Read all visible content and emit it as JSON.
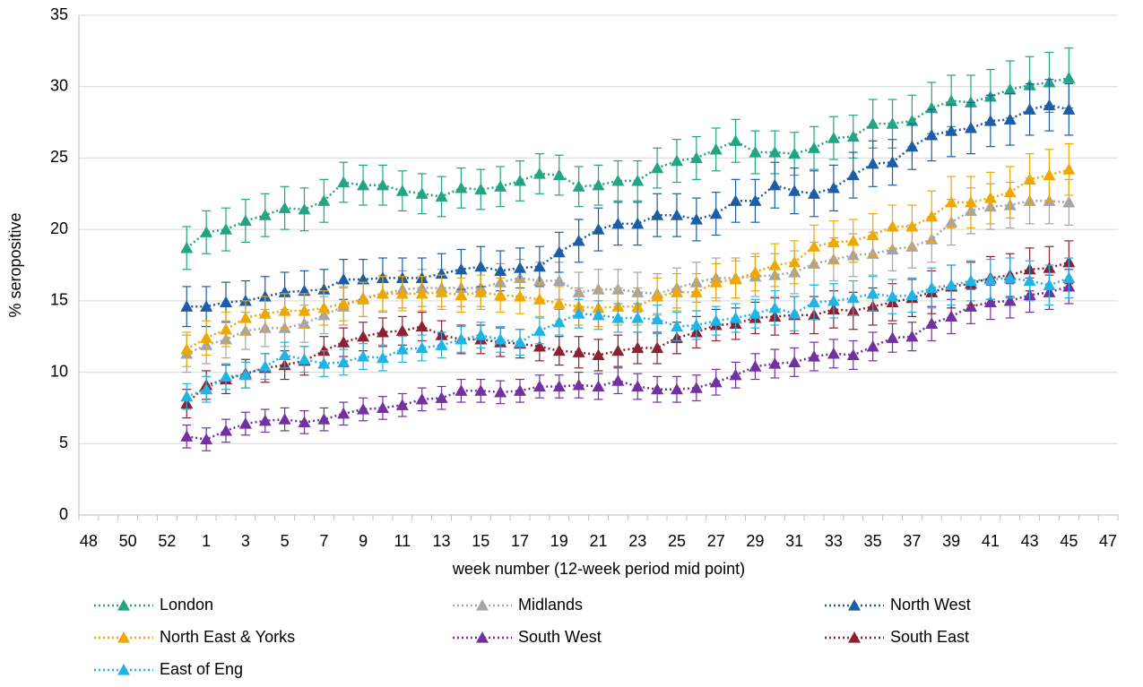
{
  "chart_data": {
    "type": "line",
    "x_label": "week number (12-week period mid point)",
    "y_label": "% seropositive",
    "categories": [
      48,
      null,
      50,
      null,
      52,
      null,
      1,
      null,
      3,
      null,
      5,
      null,
      7,
      null,
      9,
      null,
      11,
      null,
      13,
      null,
      15,
      null,
      17,
      null,
      19,
      null,
      21,
      null,
      23,
      null,
      25,
      null,
      27,
      null,
      29,
      null,
      31,
      null,
      33,
      null,
      35,
      null,
      37,
      null,
      39,
      null,
      41,
      null,
      43,
      null,
      45,
      null,
      47
    ],
    "ylim": [
      0,
      35
    ],
    "yticks": [
      0,
      5,
      10,
      15,
      20,
      25,
      30,
      35
    ],
    "grid": true,
    "legend": "bottom",
    "series": [
      {
        "name": "London",
        "color": "#21a583",
        "values": [
          null,
          null,
          null,
          null,
          null,
          18.7,
          19.8,
          20.0,
          20.6,
          21.0,
          21.5,
          21.4,
          22.0,
          23.3,
          23.1,
          23.1,
          22.7,
          22.5,
          22.3,
          22.9,
          22.8,
          23.0,
          23.4,
          23.9,
          23.8,
          23.0,
          23.1,
          23.4,
          23.4,
          24.3,
          24.8,
          25.0,
          25.6,
          26.2,
          25.4,
          25.4,
          25.3,
          25.7,
          26.4,
          26.5,
          27.4,
          27.4,
          27.6,
          28.5,
          29.0,
          28.9,
          29.3,
          29.8,
          30.1,
          30.3,
          30.6,
          null,
          null
        ],
        "errors": [
          null,
          null,
          null,
          null,
          null,
          1.5,
          1.5,
          1.5,
          1.5,
          1.5,
          1.5,
          1.5,
          1.5,
          1.4,
          1.4,
          1.4,
          1.4,
          1.4,
          1.4,
          1.4,
          1.4,
          1.4,
          1.4,
          1.4,
          1.4,
          1.4,
          1.4,
          1.4,
          1.4,
          1.4,
          1.5,
          1.5,
          1.5,
          1.5,
          1.5,
          1.5,
          1.5,
          1.5,
          1.5,
          1.5,
          1.7,
          1.7,
          1.8,
          1.8,
          1.8,
          1.9,
          1.9,
          2.0,
          2.0,
          2.1,
          2.1,
          null,
          null
        ]
      },
      {
        "name": "Midlands",
        "color": "#a5a5a5",
        "values": [
          null,
          null,
          null,
          null,
          null,
          11.3,
          11.9,
          12.3,
          12.9,
          13.1,
          13.1,
          13.4,
          14.0,
          14.6,
          15.2,
          15.5,
          15.8,
          15.9,
          15.9,
          15.9,
          15.9,
          16.3,
          16.6,
          16.4,
          16.4,
          15.6,
          15.8,
          15.8,
          15.6,
          15.5,
          15.9,
          16.3,
          16.6,
          16.6,
          16.7,
          16.8,
          17.0,
          17.6,
          17.9,
          18.2,
          18.3,
          18.6,
          18.8,
          19.3,
          20.5,
          21.3,
          21.6,
          21.7,
          22.0,
          22.0,
          21.9,
          null,
          null
        ],
        "errors": [
          null,
          null,
          null,
          null,
          null,
          1.3,
          1.3,
          1.3,
          1.3,
          1.3,
          1.3,
          1.3,
          1.3,
          1.3,
          1.3,
          1.3,
          1.3,
          1.3,
          1.3,
          1.3,
          1.3,
          1.3,
          1.3,
          1.3,
          1.3,
          1.4,
          1.4,
          1.4,
          1.4,
          1.4,
          1.4,
          1.4,
          1.4,
          1.4,
          1.4,
          1.5,
          1.5,
          1.5,
          1.5,
          1.5,
          1.5,
          1.5,
          1.5,
          1.6,
          1.6,
          1.6,
          1.6,
          1.6,
          1.6,
          1.6,
          1.6,
          null,
          null
        ]
      },
      {
        "name": "North West",
        "color": "#1c5da6",
        "values": [
          null,
          null,
          null,
          null,
          null,
          14.6,
          14.6,
          14.9,
          15.0,
          15.3,
          15.6,
          15.7,
          15.8,
          16.5,
          16.5,
          16.6,
          16.6,
          16.6,
          16.9,
          17.2,
          17.4,
          17.1,
          17.3,
          17.4,
          18.4,
          19.2,
          20.0,
          20.4,
          20.4,
          21.0,
          21.0,
          20.7,
          21.1,
          22.0,
          22.0,
          23.1,
          22.7,
          22.5,
          22.9,
          23.8,
          24.6,
          24.7,
          25.8,
          26.6,
          26.9,
          27.1,
          27.6,
          27.7,
          28.4,
          28.7,
          28.4,
          null,
          null
        ],
        "errors": [
          null,
          null,
          null,
          null,
          null,
          1.4,
          1.4,
          1.4,
          1.4,
          1.4,
          1.4,
          1.4,
          1.4,
          1.4,
          1.4,
          1.4,
          1.4,
          1.4,
          1.4,
          1.4,
          1.4,
          1.4,
          1.4,
          1.4,
          1.4,
          1.5,
          1.5,
          1.5,
          1.5,
          1.5,
          1.5,
          1.5,
          1.5,
          1.5,
          1.5,
          1.6,
          1.6,
          1.6,
          1.6,
          1.6,
          1.6,
          1.6,
          1.6,
          1.8,
          1.8,
          1.8,
          1.8,
          1.8,
          1.8,
          1.8,
          1.8,
          null,
          null
        ]
      },
      {
        "name": "North East & Yorks",
        "color": "#eea800",
        "values": [
          null,
          null,
          null,
          null,
          null,
          11.6,
          12.4,
          13.0,
          13.8,
          14.1,
          14.3,
          14.3,
          14.5,
          14.8,
          15.1,
          15.5,
          15.5,
          15.5,
          15.6,
          15.4,
          15.6,
          15.4,
          15.3,
          15.1,
          14.8,
          14.6,
          14.5,
          14.6,
          14.6,
          15.3,
          15.6,
          15.6,
          16.3,
          16.5,
          17.0,
          17.5,
          17.7,
          18.8,
          19.1,
          19.2,
          19.6,
          20.2,
          20.2,
          20.9,
          21.9,
          21.9,
          22.2,
          22.6,
          23.5,
          23.8,
          24.2,
          null,
          null
        ],
        "errors": [
          null,
          null,
          null,
          null,
          null,
          1.2,
          1.2,
          1.2,
          1.2,
          1.2,
          1.2,
          1.2,
          1.2,
          1.2,
          1.2,
          1.2,
          1.2,
          1.2,
          1.2,
          1.2,
          1.2,
          1.2,
          1.2,
          1.2,
          1.2,
          1.3,
          1.3,
          1.3,
          1.3,
          1.3,
          1.3,
          1.3,
          1.3,
          1.3,
          1.3,
          1.5,
          1.5,
          1.5,
          1.5,
          1.5,
          1.5,
          1.5,
          1.5,
          1.8,
          1.8,
          1.8,
          1.8,
          1.8,
          1.8,
          1.8,
          1.8,
          null,
          null
        ]
      },
      {
        "name": "South West",
        "color": "#7131a1",
        "values": [
          null,
          null,
          null,
          null,
          null,
          5.5,
          5.3,
          5.9,
          6.4,
          6.6,
          6.7,
          6.5,
          6.7,
          7.1,
          7.4,
          7.5,
          7.7,
          8.1,
          8.2,
          8.7,
          8.7,
          8.6,
          8.7,
          9.0,
          9.0,
          9.1,
          9.0,
          9.4,
          9.0,
          8.8,
          8.8,
          8.9,
          9.3,
          9.8,
          10.4,
          10.6,
          10.7,
          11.1,
          11.3,
          11.2,
          11.8,
          12.4,
          12.5,
          13.4,
          13.9,
          14.6,
          14.9,
          15.0,
          15.4,
          15.6,
          16.0,
          null,
          null
        ],
        "errors": [
          null,
          null,
          null,
          null,
          null,
          0.8,
          0.8,
          0.8,
          0.8,
          0.8,
          0.8,
          0.8,
          0.8,
          0.8,
          0.8,
          0.8,
          0.8,
          0.8,
          0.8,
          0.8,
          0.8,
          0.8,
          0.8,
          0.8,
          0.8,
          0.9,
          0.9,
          0.9,
          0.9,
          0.9,
          0.9,
          0.9,
          0.9,
          0.9,
          0.9,
          1.0,
          1.0,
          1.0,
          1.0,
          1.0,
          1.0,
          1.0,
          1.0,
          1.2,
          1.2,
          1.2,
          1.2,
          1.2,
          1.2,
          1.2,
          1.2,
          null,
          null
        ]
      },
      {
        "name": "South East",
        "color": "#8c2231",
        "values": [
          null,
          null,
          null,
          null,
          null,
          7.8,
          9.1,
          9.5,
          9.9,
          10.3,
          10.5,
          10.8,
          11.5,
          12.1,
          12.5,
          12.8,
          12.9,
          13.2,
          12.6,
          12.3,
          12.3,
          12.1,
          12.0,
          11.8,
          11.5,
          11.4,
          11.2,
          11.5,
          11.7,
          11.7,
          12.4,
          12.8,
          13.3,
          13.4,
          13.8,
          13.9,
          14.0,
          14.0,
          14.4,
          14.3,
          14.6,
          14.9,
          15.2,
          15.6,
          16.0,
          16.2,
          16.6,
          16.8,
          17.2,
          17.3,
          17.7,
          null,
          null
        ],
        "errors": [
          null,
          null,
          null,
          null,
          null,
          1.0,
          1.0,
          1.0,
          1.0,
          1.0,
          1.0,
          1.0,
          1.0,
          1.0,
          1.0,
          1.0,
          1.0,
          1.0,
          1.0,
          1.0,
          1.0,
          1.0,
          1.0,
          1.0,
          1.0,
          1.1,
          1.1,
          1.1,
          1.1,
          1.1,
          1.1,
          1.1,
          1.1,
          1.1,
          1.1,
          1.3,
          1.3,
          1.3,
          1.3,
          1.3,
          1.3,
          1.3,
          1.3,
          1.5,
          1.5,
          1.5,
          1.5,
          1.5,
          1.5,
          1.5,
          1.5,
          null,
          null
        ]
      },
      {
        "name": "East of Eng",
        "color": "#1fb3e6",
        "values": [
          null,
          null,
          null,
          null,
          null,
          8.3,
          8.8,
          9.7,
          9.8,
          10.4,
          11.2,
          10.9,
          10.6,
          10.7,
          11.1,
          11.0,
          11.6,
          11.7,
          11.9,
          12.3,
          12.6,
          12.3,
          12.1,
          12.9,
          13.5,
          14.1,
          14.0,
          13.8,
          13.8,
          13.7,
          13.2,
          13.3,
          13.6,
          13.8,
          14.1,
          14.5,
          14.1,
          14.9,
          15.0,
          15.2,
          15.5,
          15.3,
          15.4,
          15.9,
          16.1,
          16.4,
          16.5,
          16.6,
          16.4,
          16.1,
          16.6,
          null,
          null
        ],
        "errors": [
          null,
          null,
          null,
          null,
          null,
          0.9,
          0.9,
          0.9,
          0.9,
          0.9,
          0.9,
          0.9,
          0.9,
          0.9,
          0.9,
          0.9,
          0.9,
          0.9,
          0.9,
          0.9,
          0.9,
          0.9,
          0.9,
          0.9,
          0.9,
          1.0,
          1.0,
          1.0,
          1.0,
          1.0,
          1.0,
          1.0,
          1.0,
          1.0,
          1.0,
          1.2,
          1.2,
          1.2,
          1.2,
          1.2,
          1.2,
          1.2,
          1.2,
          1.4,
          1.4,
          1.4,
          1.4,
          1.4,
          1.4,
          1.4,
          1.4,
          null,
          null
        ]
      }
    ]
  }
}
